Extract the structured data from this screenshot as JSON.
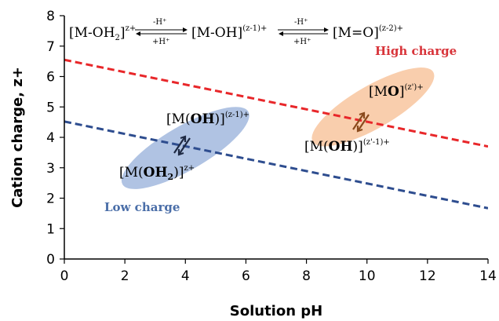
{
  "chart_data": {
    "type": "line",
    "title": "",
    "xlabel": "Solution pH",
    "ylabel": "Cation charge, z+",
    "xlim": [
      0,
      14
    ],
    "ylim": [
      0,
      8
    ],
    "xticks": [
      0,
      2,
      4,
      6,
      8,
      10,
      12,
      14
    ],
    "yticks": [
      0,
      1,
      2,
      3,
      4,
      5,
      6,
      7,
      8
    ],
    "grid": false,
    "series": [
      {
        "name": "High charge",
        "color": "#e8272a",
        "style": "dashed",
        "x": [
          0,
          14
        ],
        "y": [
          6.55,
          3.7
        ]
      },
      {
        "name": "Low charge",
        "color": "#2e4d8f",
        "style": "dashed",
        "x": [
          0,
          14
        ],
        "y": [
          4.52,
          1.67
        ]
      }
    ],
    "regions": [
      {
        "name": "low-charge-region",
        "color": "#a7bde0",
        "center": [
          4.0,
          3.65
        ],
        "rx_units": 4.8,
        "ry_units": 1.45,
        "rotation_deg": -30,
        "upper_species": {
          "pre": "[M(",
          "bold": "OH",
          "post": ")]",
          "sup": "(z-1)+"
        },
        "lower_species": {
          "pre": "[M(",
          "bold": "OH",
          "sub": "2",
          "post": ")]",
          "sup": "z+"
        }
      },
      {
        "name": "high-charge-region",
        "color": "#f8c9a4",
        "center": [
          10.2,
          5.0
        ],
        "rx_units": 4.6,
        "ry_units": 1.4,
        "rotation_deg": -30,
        "upper_species": {
          "pre": "[M",
          "bold": "O",
          "post": "]",
          "sup": "(z')+"
        },
        "lower_species": {
          "pre": "[M(",
          "bold": "OH",
          "post": ")]",
          "sup": "(z'-1)+"
        }
      }
    ],
    "annotations": {
      "high_charge_label": "High charge",
      "low_charge_label": "Low charge",
      "equation": {
        "species": [
          {
            "text": "[M-OH",
            "sub": "2",
            "close": "]",
            "sup": "z+"
          },
          {
            "text": "[M-OH]",
            "sup": "(z-1)+"
          },
          {
            "text": "[M=O]",
            "sup": "(z-2)+"
          }
        ],
        "arrow_top": "-H⁺",
        "arrow_bottom": "+H⁺"
      }
    },
    "colors": {
      "high_charge_text": "#d8343a",
      "low_charge_text": "#4a6ea8",
      "arrow_low": "#1f2a44",
      "arrow_high": "#8a4a1c"
    }
  }
}
